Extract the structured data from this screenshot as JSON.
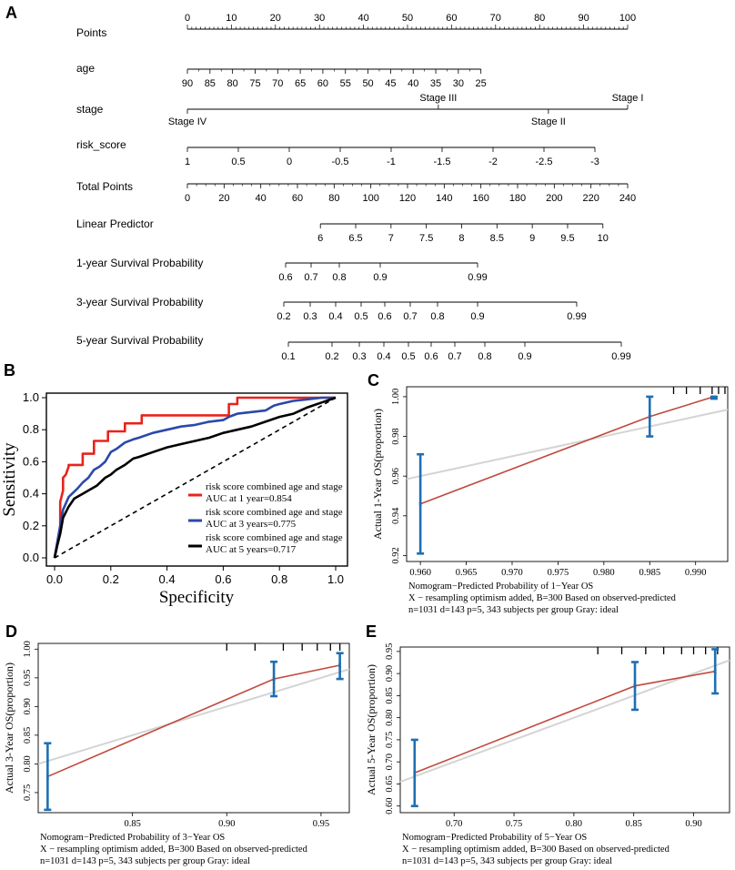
{
  "panel_letters": {
    "a": "A",
    "b": "B",
    "c": "C",
    "d": "D",
    "e": "E"
  },
  "chart_data": [
    {
      "type": "nomogram",
      "panel": "A",
      "rows": [
        {
          "label": "Points",
          "kind": "points",
          "min": 0,
          "max": 100,
          "ticks": [
            "0",
            "10",
            "20",
            "30",
            "40",
            "50",
            "60",
            "70",
            "80",
            "90",
            "100"
          ]
        },
        {
          "label": "age",
          "kind": "age",
          "ticks": [
            "90",
            "85",
            "80",
            "75",
            "70",
            "65",
            "60",
            "55",
            "50",
            "45",
            "40",
            "35",
            "30",
            "25"
          ]
        },
        {
          "label": "stage",
          "kind": "stage",
          "ticks": [
            {
              "label": "Stage IV",
              "points": 0
            },
            {
              "label": "Stage III",
              "points": 57
            },
            {
              "label": "Stage II",
              "points": 82
            },
            {
              "label": "Stage I",
              "points": 100
            }
          ]
        },
        {
          "label": "risk_score",
          "kind": "risk",
          "ticks": [
            "1",
            "0.5",
            "0",
            "-0.5",
            "-1",
            "-1.5",
            "-2",
            "-2.5",
            "-3"
          ]
        },
        {
          "label": "Total Points",
          "kind": "total",
          "min": 0,
          "max": 240,
          "ticks": [
            "0",
            "20",
            "40",
            "60",
            "80",
            "100",
            "120",
            "140",
            "160",
            "180",
            "200",
            "220",
            "240"
          ]
        },
        {
          "label": "Linear Predictor",
          "kind": "lp",
          "ticks": [
            "6",
            "6.5",
            "7",
            "7.5",
            "8",
            "8.5",
            "9",
            "9.5",
            "10"
          ]
        },
        {
          "label": "1-year Survival Probability",
          "kind": "s1",
          "ticks": [
            "0.6",
            "0.7",
            "0.8",
            "0.9",
            "0.99"
          ]
        },
        {
          "label": "3-year Survival Probability",
          "kind": "s3",
          "ticks": [
            "0.2",
            "0.3",
            "0.4",
            "0.5",
            "0.6",
            "0.7",
            "0.8",
            "0.9",
            "0.99"
          ]
        },
        {
          "label": "5-year Survival Probability",
          "kind": "s5",
          "ticks": [
            "0.1",
            "0.2",
            "0.3",
            "0.4",
            "0.5",
            "0.6",
            "0.7",
            "0.8",
            "0.9",
            "0.99"
          ]
        }
      ]
    },
    {
      "type": "line",
      "panel": "B",
      "xlabel": "Specificity",
      "ylabel": "Sensitivity",
      "xlim": [
        0,
        1
      ],
      "ylim": [
        0,
        1
      ],
      "x_ticks": [
        "0.0",
        "0.2",
        "0.4",
        "0.6",
        "0.8",
        "1.0"
      ],
      "y_ticks": [
        "0.0",
        "0.2",
        "0.4",
        "0.6",
        "0.8",
        "1.0"
      ],
      "series": [
        {
          "name": "risk score combined age and stage",
          "auc_text": "AUC at 1 year=0.854",
          "color": "#e8231c",
          "x": [
            0,
            0.01,
            0.02,
            0.02,
            0.03,
            0.03,
            0.04,
            0.05,
            0.05,
            0.1,
            0.1,
            0.14,
            0.14,
            0.19,
            0.19,
            0.25,
            0.25,
            0.31,
            0.31,
            0.62,
            0.62,
            0.65,
            0.65,
            0.85,
            0.85,
            1
          ],
          "y": [
            0,
            0.1,
            0.2,
            0.35,
            0.42,
            0.5,
            0.52,
            0.57,
            0.58,
            0.58,
            0.65,
            0.65,
            0.73,
            0.73,
            0.79,
            0.79,
            0.84,
            0.84,
            0.89,
            0.89,
            0.96,
            0.96,
            1,
            1,
            1,
            1
          ]
        },
        {
          "name": "risk score combined age and stage",
          "auc_text": "AUC at 3 years=0.775",
          "color": "#2a49a8",
          "x": [
            0,
            0.01,
            0.02,
            0.03,
            0.05,
            0.08,
            0.1,
            0.12,
            0.14,
            0.16,
            0.18,
            0.2,
            0.22,
            0.25,
            0.28,
            0.3,
            0.35,
            0.4,
            0.45,
            0.5,
            0.55,
            0.6,
            0.62,
            0.65,
            0.7,
            0.75,
            0.78,
            0.8,
            0.85,
            0.9,
            0.95,
            1
          ],
          "y": [
            0,
            0.1,
            0.2,
            0.3,
            0.38,
            0.43,
            0.47,
            0.5,
            0.55,
            0.57,
            0.6,
            0.66,
            0.68,
            0.72,
            0.74,
            0.75,
            0.78,
            0.8,
            0.82,
            0.83,
            0.85,
            0.86,
            0.88,
            0.9,
            0.91,
            0.92,
            0.95,
            0.96,
            0.98,
            0.99,
            1,
            1
          ]
        },
        {
          "name": "risk score combined age and stage",
          "auc_text": "AUC at 5 years=0.717",
          "color": "#000000",
          "x": [
            0,
            0.01,
            0.02,
            0.03,
            0.05,
            0.07,
            0.1,
            0.13,
            0.15,
            0.18,
            0.2,
            0.22,
            0.25,
            0.28,
            0.3,
            0.35,
            0.4,
            0.45,
            0.5,
            0.55,
            0.6,
            0.65,
            0.7,
            0.75,
            0.8,
            0.85,
            0.9,
            0.95,
            1
          ],
          "y": [
            0,
            0.08,
            0.15,
            0.25,
            0.32,
            0.37,
            0.4,
            0.43,
            0.45,
            0.5,
            0.52,
            0.55,
            0.58,
            0.62,
            0.63,
            0.66,
            0.69,
            0.71,
            0.73,
            0.75,
            0.78,
            0.8,
            0.82,
            0.85,
            0.88,
            0.9,
            0.94,
            0.97,
            1
          ]
        }
      ],
      "reference_line": "dashed diagonal",
      "legend_position": "bottom-right"
    },
    {
      "type": "line",
      "panel": "C",
      "ylabel": "Actual 1-Year OS(proportion)",
      "xlabel": "Nomogram−Predicted Probability of 1−Year OS",
      "note1": "X − resampling optimism added, B=300   Based on observed-predicted",
      "note2": "n=1031 d=143 p=5, 343 subjects per group  Gray: ideal",
      "xlim": [
        0.9585,
        0.9935
      ],
      "ylim": [
        0.917,
        1.005
      ],
      "x_ticks": [
        "0.960",
        "0.965",
        "0.970",
        "0.975",
        "0.980",
        "0.985",
        "0.990"
      ],
      "y_ticks": [
        "0.92",
        "0.94",
        "0.96",
        "0.98",
        "1.00"
      ],
      "rug": [
        0.9876,
        0.989,
        0.9905,
        0.9918,
        0.9925,
        0.9932
      ],
      "ideal": {
        "x": [
          0.9585,
          0.9935
        ],
        "y": [
          0.9585,
          0.9935
        ]
      },
      "series": [
        {
          "name": "observed",
          "color": "#c0493a",
          "x": [
            0.96,
            0.985,
            0.992
          ],
          "y": [
            0.946,
            0.99,
            1.0
          ]
        }
      ],
      "error_bars": [
        {
          "x": 0.96,
          "y": 0.946,
          "lo": 0.921,
          "hi": 0.971
        },
        {
          "x": 0.985,
          "y": 0.99,
          "lo": 0.98,
          "hi": 1.0
        },
        {
          "x": 0.992,
          "y": 1.0,
          "lo": 0.999,
          "hi": 1.0
        }
      ]
    },
    {
      "type": "line",
      "panel": "D",
      "ylabel": "Actual 3-Year OS(proportion)",
      "xlabel": "Nomogram−Predicted Probability of 3−Year OS",
      "note1": "X − resampling optimism added, B=300   Based on observed-predicted",
      "note2": "n=1031 d=143 p=5, 343 subjects per group  Gray: ideal",
      "xlim": [
        0.8,
        0.965
      ],
      "ylim": [
        0.715,
        1.01
      ],
      "x_ticks": [
        "0.85",
        "0.90",
        "0.95"
      ],
      "y_ticks": [
        "0.75",
        "0.80",
        "0.85",
        "0.90",
        "0.95",
        "1.00"
      ],
      "rug": [
        0.9,
        0.915,
        0.93,
        0.94,
        0.948,
        0.955,
        0.96
      ],
      "ideal": {
        "x": [
          0.8,
          0.965
        ],
        "y": [
          0.8,
          0.965
        ]
      },
      "series": [
        {
          "name": "observed",
          "color": "#c0493a",
          "x": [
            0.805,
            0.925,
            0.96
          ],
          "y": [
            0.778,
            0.948,
            0.972
          ]
        }
      ],
      "error_bars": [
        {
          "x": 0.805,
          "y": 0.778,
          "lo": 0.72,
          "hi": 0.836
        },
        {
          "x": 0.925,
          "y": 0.948,
          "lo": 0.918,
          "hi": 0.978
        },
        {
          "x": 0.96,
          "y": 0.972,
          "lo": 0.948,
          "hi": 0.993
        }
      ]
    },
    {
      "type": "line",
      "panel": "E",
      "ylabel": "Actual 5-Year OS(proportion)",
      "xlabel": "Nomogram−Predicted Probability of 5−Year OS",
      "note1": "X − resampling optimism added, B=300   Based on observed-predicted",
      "note2": "n=1031 d=143 p=5, 343 subjects per group  Gray: ideal",
      "xlim": [
        0.655,
        0.93
      ],
      "ylim": [
        0.585,
        0.96
      ],
      "x_ticks": [
        "0.70",
        "0.75",
        "0.80",
        "0.85",
        "0.90"
      ],
      "y_ticks": [
        "0.60",
        "0.65",
        "0.70",
        "0.75",
        "0.80",
        "0.85",
        "0.90",
        "0.95"
      ],
      "rug": [
        0.82,
        0.84,
        0.86,
        0.875,
        0.89,
        0.9,
        0.91,
        0.92
      ],
      "ideal": {
        "x": [
          0.655,
          0.93
        ],
        "y": [
          0.655,
          0.93
        ]
      },
      "series": [
        {
          "name": "observed",
          "color": "#c0493a",
          "x": [
            0.667,
            0.851,
            0.918
          ],
          "y": [
            0.675,
            0.872,
            0.905
          ]
        }
      ],
      "error_bars": [
        {
          "x": 0.667,
          "y": 0.675,
          "lo": 0.6,
          "hi": 0.75
        },
        {
          "x": 0.851,
          "y": 0.872,
          "lo": 0.818,
          "hi": 0.926
        },
        {
          "x": 0.918,
          "y": 0.905,
          "lo": 0.855,
          "hi": 0.955
        }
      ]
    }
  ]
}
